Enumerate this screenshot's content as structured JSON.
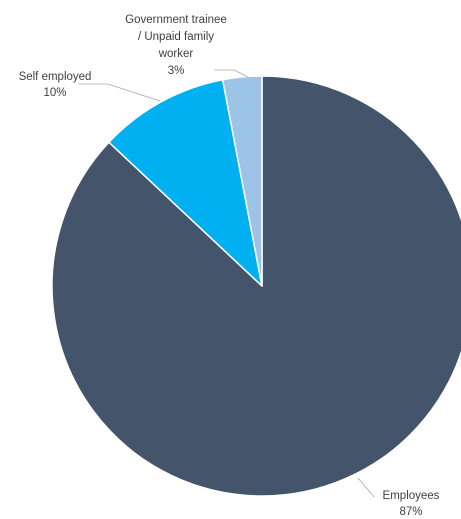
{
  "chart_data": {
    "type": "pie",
    "slices": [
      {
        "label": "Employees",
        "value": 87,
        "value_label": "87%",
        "color": "#44546a"
      },
      {
        "label": "Self employed",
        "value": 10,
        "value_label": "10%",
        "color": "#00b0f0"
      },
      {
        "label_lines": [
          "Government trainee",
          "/ Unpaid family",
          "worker"
        ],
        "value": 3,
        "value_label": "3%",
        "color": "#9dc3e6"
      }
    ],
    "title": "",
    "legend": "none",
    "slice_border_color": "#ffffff"
  }
}
